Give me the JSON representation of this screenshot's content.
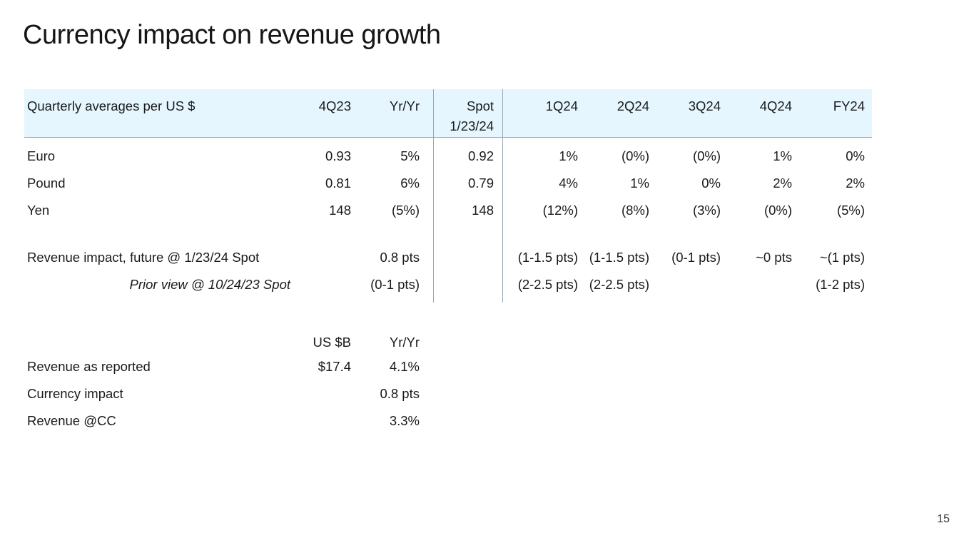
{
  "title": "Currency impact on revenue growth",
  "page_number": "15",
  "fx_table": {
    "header": {
      "label": "Quarterly averages per US $",
      "q4_23": "4Q23",
      "yr_yr": "Yr/Yr",
      "spot_line1": "Spot",
      "spot_line2": "1/23/24",
      "q1_24": "1Q24",
      "q2_24": "2Q24",
      "q3_24": "3Q24",
      "q4_24": "4Q24",
      "fy24": "FY24"
    },
    "rows": [
      {
        "label": "Euro",
        "q4_23": "0.93",
        "yr_yr": "5%",
        "spot": "0.92",
        "q1_24": "1%",
        "q2_24": "(0%)",
        "q3_24": "(0%)",
        "q4_24": "1%",
        "fy24": "0%"
      },
      {
        "label": "Pound",
        "q4_23": "0.81",
        "yr_yr": "6%",
        "spot": "0.79",
        "q1_24": "4%",
        "q2_24": "1%",
        "q3_24": "0%",
        "q4_24": "2%",
        "fy24": "2%"
      },
      {
        "label": "Yen",
        "q4_23": "148",
        "yr_yr": "(5%)",
        "spot": "148",
        "q1_24": "(12%)",
        "q2_24": "(8%)",
        "q3_24": "(3%)",
        "q4_24": "(0%)",
        "fy24": "(5%)"
      }
    ],
    "impact_row": {
      "label": "Revenue impact, future @ 1/23/24 Spot",
      "yr_yr": "0.8 pts",
      "q1_24": "(1-1.5 pts)",
      "q2_24": "(1-1.5 pts)",
      "q3_24": "(0-1 pts)",
      "q4_24": "~0 pts",
      "fy24": "~(1 pts)"
    },
    "prior_row": {
      "label": "Prior view @ 10/24/23 Spot",
      "yr_yr": "(0-1 pts)",
      "q1_24": "(2-2.5 pts)",
      "q2_24": "(2-2.5 pts)",
      "fy24": "(1-2 pts)"
    }
  },
  "revenue_table": {
    "header": {
      "usb": "US $B",
      "yr_yr": "Yr/Yr"
    },
    "rows": [
      {
        "label": "Revenue as reported",
        "usb": "$17.4",
        "yr_yr": "4.1%"
      },
      {
        "label": "Currency impact",
        "usb": "",
        "yr_yr": "0.8 pts"
      },
      {
        "label": "Revenue @CC",
        "usb": "",
        "yr_yr": "3.3%"
      }
    ]
  }
}
